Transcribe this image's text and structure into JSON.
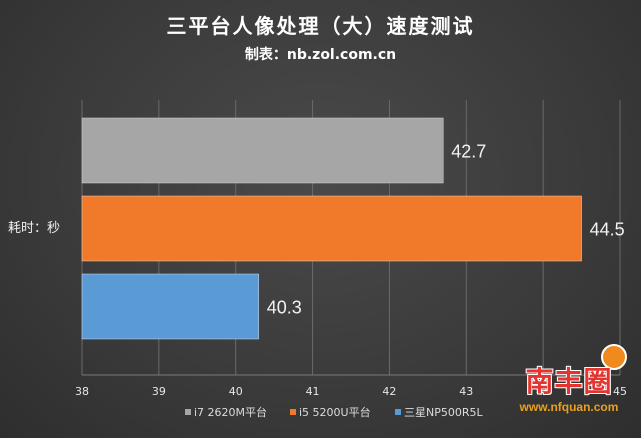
{
  "title": "三平台人像处理（大）速度测试",
  "subtitle": "制表：nb.zol.com.cn",
  "watermark": {
    "text": "南丰圈",
    "url": "www.nfquan.com"
  },
  "chart_data": {
    "type": "bar",
    "orientation": "horizontal",
    "ylabel": "耗时：秒",
    "xlim": [
      38,
      45
    ],
    "xticks": [
      "38",
      "39",
      "40",
      "41",
      "42",
      "43",
      "44",
      "45"
    ],
    "grid": true,
    "legend_position": "bottom",
    "series": [
      {
        "name": "i7 2620M平台",
        "value": 42.7,
        "label": "42.7",
        "color": "#a6a6a6"
      },
      {
        "name": "i5 5200U平台",
        "value": 44.5,
        "label": "44.5",
        "color": "#f07a2a"
      },
      {
        "name": "三星NP500R5L",
        "value": 40.3,
        "label": "40.3",
        "color": "#5b9bd5"
      }
    ]
  }
}
